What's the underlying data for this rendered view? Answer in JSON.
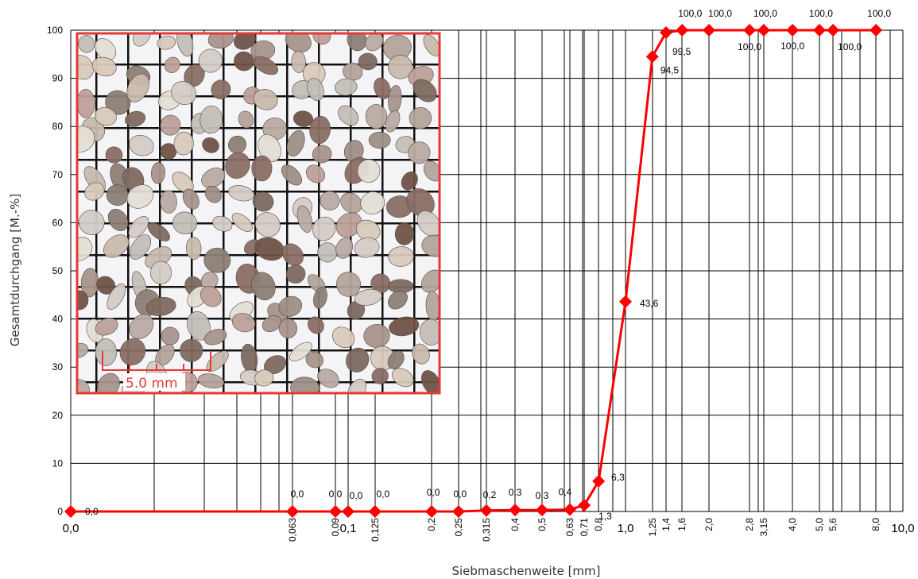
{
  "chart_data": {
    "type": "line",
    "title": "",
    "xlabel": "Siebmaschenweite  [mm]",
    "ylabel": "Gesamtdurchgang  [M.-%]",
    "x_scale": "log",
    "xlim": [
      0.0,
      10.0
    ],
    "ylim": [
      0,
      100
    ],
    "grid": true,
    "legend": "none",
    "line_color": "#ff0000",
    "y_ticks": [
      "0",
      "10",
      "20",
      "30",
      "40",
      "50",
      "60",
      "70",
      "80",
      "90",
      "100"
    ],
    "x_major_ticks": [
      {
        "x": 0.0,
        "label": "0,0"
      },
      {
        "x": 0.1,
        "label": "0,1"
      },
      {
        "x": 1.0,
        "label": "1,0"
      },
      {
        "x": 10.0,
        "label": "10,0"
      }
    ],
    "x_minor_ticks": [
      {
        "x": 0.063,
        "label": "0,063"
      },
      {
        "x": 0.09,
        "label": "0,09"
      },
      {
        "x": 0.125,
        "label": "0,125"
      },
      {
        "x": 0.2,
        "label": "0,2"
      },
      {
        "x": 0.25,
        "label": "0,25"
      },
      {
        "x": 0.315,
        "label": "0,315"
      },
      {
        "x": 0.4,
        "label": "0,4"
      },
      {
        "x": 0.5,
        "label": "0,5"
      },
      {
        "x": 0.63,
        "label": "0,63"
      },
      {
        "x": 0.71,
        "label": "0,71"
      },
      {
        "x": 0.8,
        "label": "0,8"
      },
      {
        "x": 1.25,
        "label": "1,25"
      },
      {
        "x": 1.4,
        "label": "1,4"
      },
      {
        "x": 1.6,
        "label": "1,6"
      },
      {
        "x": 2.0,
        "label": "2,0"
      },
      {
        "x": 2.8,
        "label": "2,8"
      },
      {
        "x": 3.15,
        "label": "3,15"
      },
      {
        "x": 4.0,
        "label": "4,0"
      },
      {
        "x": 5.0,
        "label": "5,0"
      },
      {
        "x": 5.6,
        "label": "5,6"
      },
      {
        "x": 8.0,
        "label": "8,0"
      }
    ],
    "series": [
      {
        "points": [
          {
            "x": 0.0,
            "y": 0.0,
            "label": "0,0"
          },
          {
            "x": 0.063,
            "y": 0.0,
            "label": "0,0"
          },
          {
            "x": 0.09,
            "y": 0.0,
            "label": "0,0"
          },
          {
            "x": 0.1,
            "y": 0.0,
            "label": "0,0"
          },
          {
            "x": 0.125,
            "y": 0.0,
            "label": "0,0"
          },
          {
            "x": 0.2,
            "y": 0.0,
            "label": "0,0"
          },
          {
            "x": 0.25,
            "y": 0.0,
            "label": "0,0"
          },
          {
            "x": 0.315,
            "y": 0.2,
            "label": "0,2"
          },
          {
            "x": 0.4,
            "y": 0.3,
            "label": "0,3"
          },
          {
            "x": 0.5,
            "y": 0.3,
            "label": "0,3"
          },
          {
            "x": 0.63,
            "y": 0.4,
            "label": "0,4"
          },
          {
            "x": 0.71,
            "y": 1.3,
            "label": "1,3"
          },
          {
            "x": 0.8,
            "y": 6.3,
            "label": "6,3"
          },
          {
            "x": 1.0,
            "y": 43.6,
            "label": "43,6"
          },
          {
            "x": 1.25,
            "y": 94.5,
            "label": "94,5"
          },
          {
            "x": 1.4,
            "y": 99.5,
            "label": "99,5"
          },
          {
            "x": 1.6,
            "y": 100.0,
            "label": "100,0"
          },
          {
            "x": 2.0,
            "y": 100.0,
            "label": "100,0"
          },
          {
            "x": 2.8,
            "y": 100.0,
            "label": "100,0"
          },
          {
            "x": 3.15,
            "y": 100.0,
            "label": "100,0"
          },
          {
            "x": 4.0,
            "y": 100.0,
            "label": "100,0"
          },
          {
            "x": 5.0,
            "y": 100.0,
            "label": "100,0"
          },
          {
            "x": 5.6,
            "y": 100.0,
            "label": "100,0"
          },
          {
            "x": 8.0,
            "y": 100.0,
            "label": "100,0"
          }
        ]
      }
    ],
    "inset": {
      "kind": "photo of sand grains on a grid",
      "scale_bar_label": "5.0 mm",
      "scale_bar_color": "#e53935",
      "border_color": "#e53935"
    }
  }
}
